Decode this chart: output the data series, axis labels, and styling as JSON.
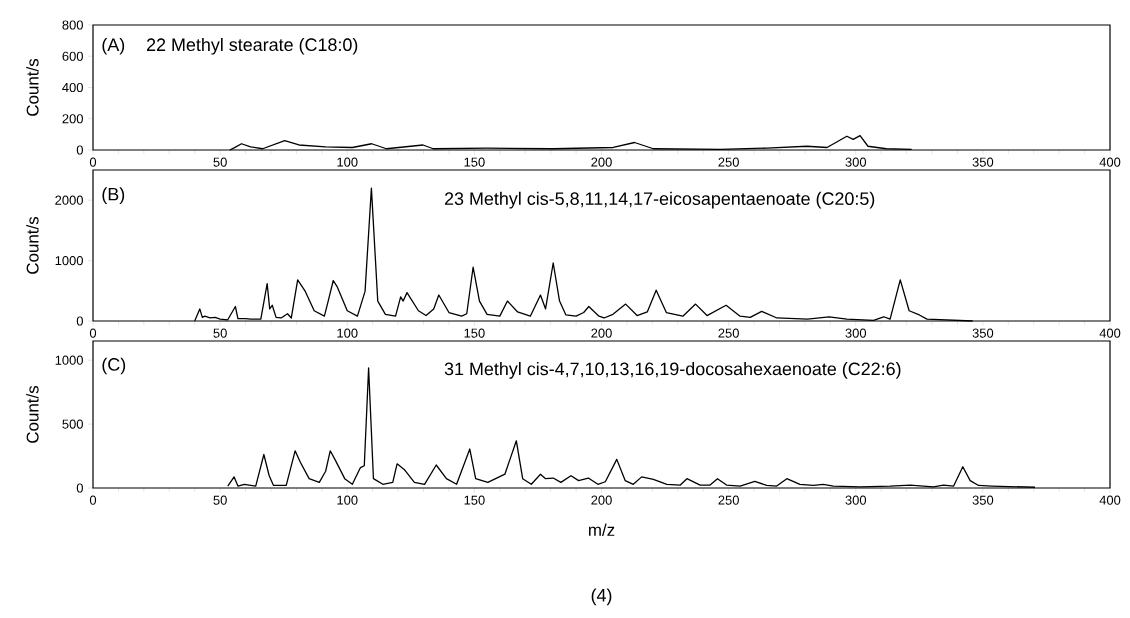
{
  "chart_data": [
    {
      "type": "line",
      "ylabel": "Count/s",
      "annotations": [
        "(A)",
        "22 Methyl stearate (C18:0)"
      ],
      "xlim": [
        0,
        400
      ],
      "xticks": [
        0,
        50,
        100,
        150,
        200,
        250,
        300,
        350,
        400
      ],
      "ylim": [
        0,
        800
      ],
      "yticks": [
        0,
        200,
        400,
        600,
        800
      ],
      "marker": "none",
      "series": [
        {
          "color": "#000000",
          "x": [
            53.8,
            55.7,
            58.4,
            62,
            66.7,
            75.4,
            81,
            91.5,
            102,
            109.6,
            115.4,
            129.8,
            133.8,
            154.7,
            181,
            204.6,
            213,
            220.4,
            246.6,
            265,
            280.8,
            288.7,
            296.5,
            299,
            301.7,
            304.8,
            312,
            322
          ],
          "values": [
            0,
            15,
            40,
            20,
            8,
            60,
            32,
            20,
            16,
            40,
            8,
            32,
            8,
            12,
            8,
            16,
            48,
            8,
            4,
            12,
            24,
            16,
            88,
            68,
            92,
            24,
            8,
            4
          ]
        }
      ]
    },
    {
      "type": "line",
      "ylabel": "Count/s",
      "annotations": [
        "(B)",
        "23 Methyl cis-5,8,11,14,17-eicosapentaenoate (C20:5)"
      ],
      "xlim": [
        0,
        400
      ],
      "xticks": [
        0,
        50,
        100,
        150,
        200,
        250,
        300,
        350,
        400
      ],
      "ylim": [
        0,
        2500
      ],
      "yticks": [
        0,
        1000,
        2000
      ],
      "marker": "none",
      "series": [
        {
          "color": "#000000",
          "x": [
            40,
            42,
            43,
            44,
            46,
            48,
            50,
            53,
            56,
            57,
            60,
            62,
            66,
            68.5,
            69.5,
            70.5,
            72,
            74,
            76.5,
            78,
            80.5,
            83.5,
            87,
            91,
            92.5,
            94.5,
            96,
            100,
            104,
            107,
            109.5,
            112,
            115,
            119,
            121,
            122,
            123.5,
            128,
            131,
            134,
            136,
            140,
            145,
            147,
            149.5,
            152,
            155,
            160,
            163,
            167,
            172,
            176,
            178,
            181,
            183.5,
            186,
            190,
            193,
            195,
            199,
            201,
            204.5,
            209.5,
            214,
            218,
            221.5,
            225.5,
            232,
            237,
            241.5,
            249,
            254.5,
            258.5,
            263,
            269,
            281,
            289.5,
            296.5,
            307,
            311,
            313.5,
            317.5,
            321,
            325,
            328,
            346
          ],
          "values": [
            0,
            200,
            60,
            80,
            50,
            60,
            30,
            20,
            240,
            40,
            40,
            30,
            30,
            620,
            200,
            260,
            60,
            50,
            120,
            50,
            680,
            490,
            170,
            80,
            330,
            670,
            570,
            170,
            80,
            490,
            2200,
            330,
            110,
            80,
            400,
            330,
            470,
            170,
            90,
            200,
            430,
            140,
            80,
            120,
            890,
            330,
            110,
            80,
            330,
            150,
            80,
            430,
            200,
            960,
            330,
            100,
            80,
            140,
            240,
            80,
            50,
            110,
            280,
            90,
            150,
            510,
            140,
            80,
            280,
            90,
            260,
            80,
            60,
            160,
            50,
            30,
            70,
            30,
            10,
            70,
            30,
            680,
            170,
            100,
            30,
            0
          ]
        }
      ]
    },
    {
      "type": "line",
      "ylabel": "Count/s",
      "xlabel": "m/z",
      "annotations": [
        "(C)",
        "31 Methyl cis-4,7,10,13,16,19-docosahexaenoate (C22:6)",
        "(4)"
      ],
      "xlim": [
        0,
        400
      ],
      "xticks": [
        0,
        50,
        100,
        150,
        200,
        250,
        300,
        350,
        400
      ],
      "ylim": [
        0,
        1150
      ],
      "yticks": [
        0,
        500,
        1000
      ],
      "marker": "none",
      "series": [
        {
          "color": "#000000",
          "x": [
            53,
            55.5,
            57,
            59.5,
            64,
            67.2,
            69.3,
            71,
            76,
            79.5,
            81.5,
            85,
            89,
            91.5,
            93.3,
            95.3,
            99,
            102,
            105.2,
            106.7,
            108.4,
            110.3,
            114,
            117.9,
            119.6,
            122.4,
            126.4,
            130.4,
            135,
            139,
            143,
            148.2,
            150.5,
            155.3,
            162,
            166.5,
            169,
            172.4,
            176,
            178,
            181,
            184,
            188,
            191,
            194.8,
            198.6,
            201.5,
            206,
            209.3,
            212.5,
            215.8,
            220.4,
            225.7,
            231,
            233.6,
            238.8,
            242.7,
            245.6,
            249.2,
            254.5,
            260.3,
            265,
            268.9,
            272.9,
            278,
            283.3,
            287.2,
            291.2,
            301.7,
            313.5,
            321.4,
            330.5,
            334.5,
            338.5,
            342.1,
            345,
            348.3,
            353.5,
            370.5
          ],
          "values": [
            15,
            87,
            15,
            29,
            15,
            262,
            96,
            20,
            20,
            291,
            203,
            73,
            44,
            131,
            291,
            218,
            73,
            29,
            160,
            174,
            939,
            73,
            29,
            44,
            189,
            145,
            44,
            29,
            180,
            73,
            29,
            305,
            73,
            44,
            108,
            369,
            73,
            29,
            108,
            73,
            78,
            44,
            96,
            58,
            78,
            29,
            49,
            224,
            58,
            29,
            87,
            67,
            29,
            23,
            73,
            23,
            23,
            73,
            23,
            15,
            52,
            20,
            15,
            73,
            29,
            20,
            29,
            15,
            9,
            15,
            23,
            9,
            23,
            15,
            166,
            58,
            20,
            15,
            6
          ]
        }
      ]
    }
  ]
}
